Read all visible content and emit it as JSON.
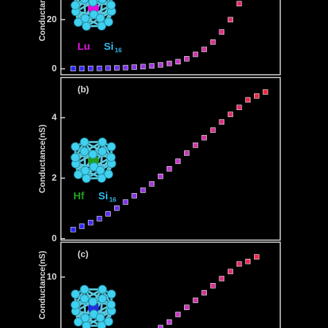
{
  "chart_data": [
    {
      "type": "scatter",
      "label": null,
      "ylabel": "Conductance(nS)",
      "element": "Lu",
      "element_color": "#e010e0",
      "cluster": "Si",
      "cluster_sub": "16",
      "cluster_color": "#30b8e8",
      "xlim": [
        -1.4,
        23.7
      ],
      "ylim": [
        -2.4,
        29.4
      ],
      "yticks": [
        0,
        20
      ],
      "x": [
        0,
        1,
        2,
        3,
        4,
        5,
        6,
        7,
        8,
        9,
        10,
        11,
        12,
        13,
        14,
        15,
        16,
        17,
        18,
        19
      ],
      "values": [
        0.1,
        0.1,
        0.2,
        0.2,
        0.3,
        0.4,
        0.5,
        0.7,
        0.9,
        1.2,
        1.6,
        2.2,
        2.9,
        4.1,
        5.9,
        7.9,
        10.9,
        15,
        20,
        26.5
      ],
      "colormap": [
        "#2828ff",
        "#c03cd0",
        "#f0283c"
      ]
    },
    {
      "type": "scatter",
      "label": "(b)",
      "ylabel": "Conductance(nS)",
      "element": "Hf",
      "element_color": "#20a020",
      "cluster": "Si",
      "cluster_sub": "16",
      "cluster_color": "#30b8e8",
      "xlim": [
        -1.4,
        23.7
      ],
      "ylim": [
        -0.05,
        5.33
      ],
      "yticks": [
        0,
        2,
        4
      ],
      "x": [
        0,
        1,
        2,
        3,
        4,
        5,
        6,
        7,
        8,
        9,
        10,
        11,
        12,
        13,
        14,
        15,
        16,
        17,
        18,
        19,
        20,
        21,
        22
      ],
      "values": [
        0.3,
        0.41,
        0.53,
        0.66,
        0.82,
        1.01,
        1.21,
        1.42,
        1.6,
        1.81,
        2.06,
        2.31,
        2.56,
        2.83,
        3.09,
        3.34,
        3.59,
        3.86,
        4.11,
        4.34,
        4.59,
        4.72,
        4.85
      ],
      "colormap": [
        "#2828ff",
        "#c03cd0",
        "#f0283c"
      ]
    },
    {
      "type": "scatter",
      "label": "(c)",
      "ylabel": "Conductance(nS)",
      "xlim": [
        -1.4,
        23.7
      ],
      "ylim": [
        -0.9,
        16.9
      ],
      "yticks": [
        10
      ],
      "x": [
        10,
        11,
        12,
        13,
        14,
        15,
        16,
        17,
        18,
        19,
        20,
        21
      ],
      "values": [
        0,
        1.1,
        2.6,
        4,
        5.4,
        6.9,
        8.3,
        9.7,
        11.1,
        12.6,
        13.1,
        14
      ],
      "colormap": [
        "#2828ff",
        "#c03cd0",
        "#f0283c"
      ]
    }
  ]
}
